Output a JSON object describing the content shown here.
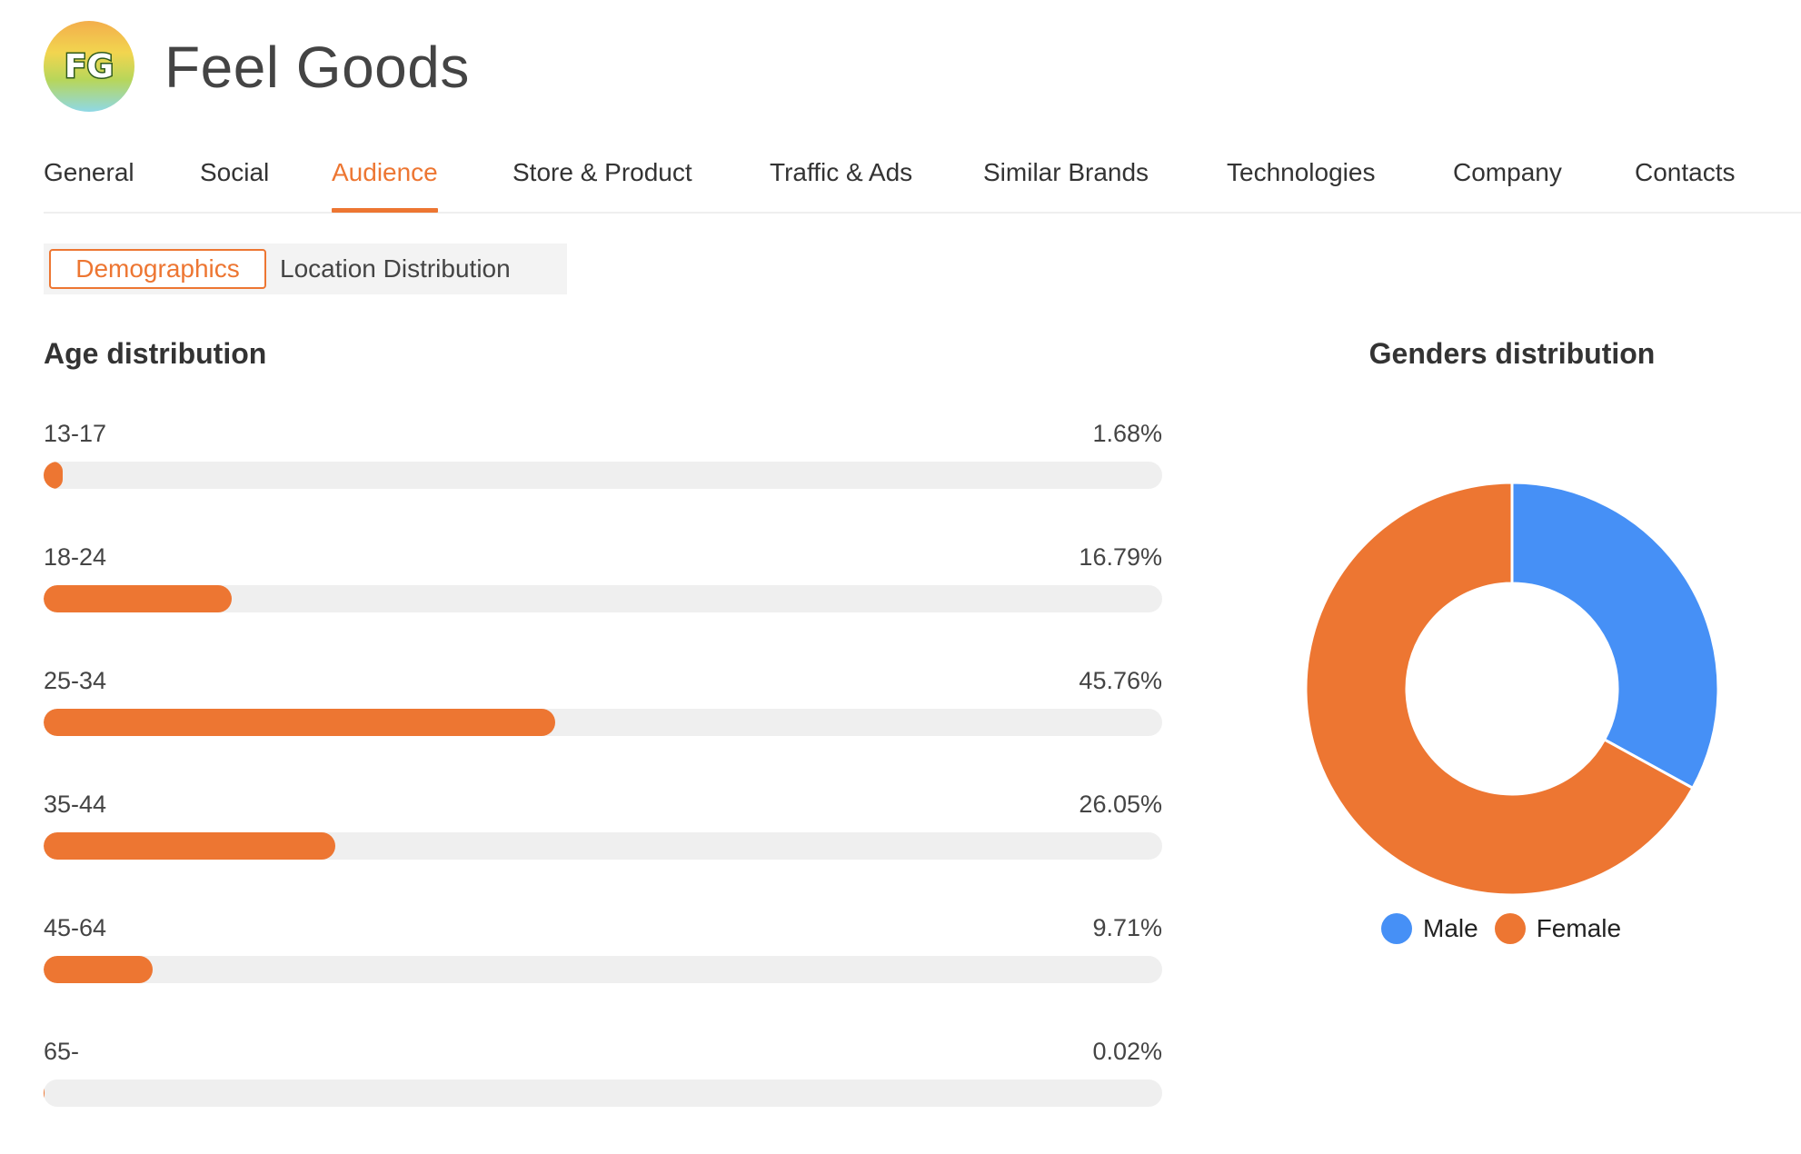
{
  "brand": {
    "name": "Feel Goods",
    "logo_text": "FG"
  },
  "tabs": [
    {
      "label": "General",
      "active": false
    },
    {
      "label": "Social",
      "active": false
    },
    {
      "label": "Audience",
      "active": true
    },
    {
      "label": "Store & Product",
      "active": false
    },
    {
      "label": "Traffic & Ads",
      "active": false
    },
    {
      "label": "Similar Brands",
      "active": false
    },
    {
      "label": "Technologies",
      "active": false
    },
    {
      "label": "Company",
      "active": false
    },
    {
      "label": "Contacts",
      "active": false
    }
  ],
  "subtabs": {
    "demographics": "Demographics",
    "location": "Location Distribution",
    "active": "Demographics"
  },
  "colors": {
    "accent": "#ed7632",
    "male": "#4690f6",
    "female": "#ed7632",
    "track": "#efefef"
  },
  "chart_data": [
    {
      "type": "bar",
      "title": "Age distribution",
      "categories": [
        "13-17",
        "18-24",
        "25-34",
        "35-44",
        "45-64",
        "65-"
      ],
      "values": [
        1.68,
        16.79,
        45.76,
        26.05,
        9.71,
        0.02
      ],
      "labels": [
        "1.68%",
        "16.79%",
        "45.76%",
        "26.05%",
        "9.71%",
        "0.02%"
      ],
      "xlim": [
        0,
        100
      ],
      "orientation": "horizontal"
    },
    {
      "type": "pie",
      "title": "Genders distribution",
      "donut": true,
      "categories": [
        "Male",
        "Female"
      ],
      "values": [
        33,
        67
      ],
      "legend": "bottom"
    }
  ]
}
